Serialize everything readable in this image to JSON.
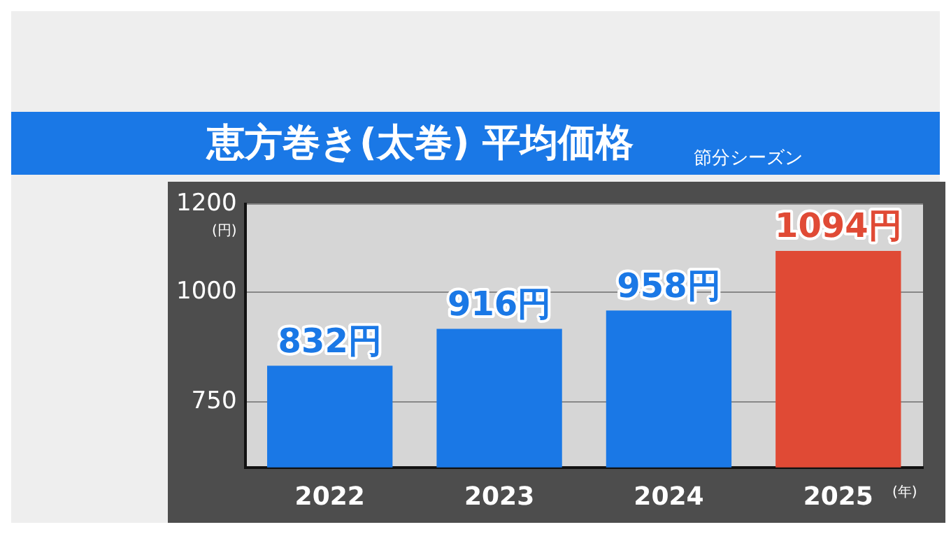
{
  "chart_data": {
    "type": "bar",
    "title": "恵方巻き(太巻) 平均価格",
    "subtitle": "節分シーズン",
    "ylabel": "(円)",
    "xlabel": "(年)",
    "categories": [
      "2022",
      "2023",
      "2024",
      "2025"
    ],
    "values": [
      832,
      916,
      958,
      1094
    ],
    "colors": [
      "#1a78e6",
      "#1a78e6",
      "#1a78e6",
      "#e04a35"
    ],
    "value_labels": [
      "832円",
      "916円",
      "958円",
      "1094円"
    ],
    "ylim": [
      600,
      1200
    ],
    "yticks": [
      750,
      1000,
      1200
    ],
    "grid": "y"
  }
}
